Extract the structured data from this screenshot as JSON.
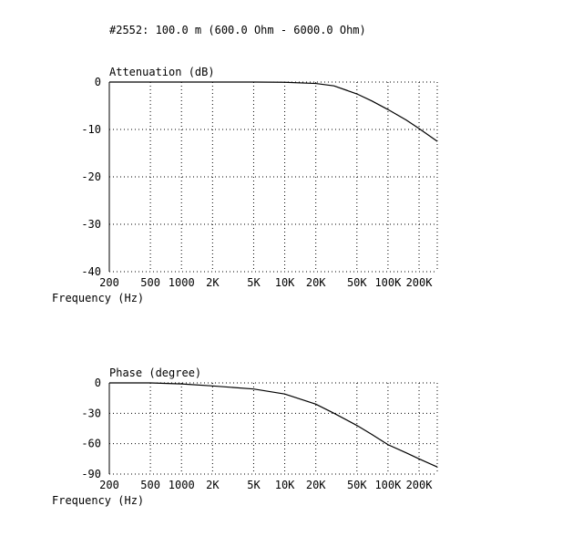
{
  "header": {
    "title": "#2552: 100.0 m (600.0 Ohm - 6000.0 Ohm)"
  },
  "chart_data": [
    {
      "type": "line",
      "title": "Attenuation (dB)",
      "xlabel": "Frequency (Hz)",
      "ylabel": "Attenuation (dB)",
      "x_scale": "log",
      "xlim": [
        200,
        300000
      ],
      "ylim": [
        -40,
        0
      ],
      "grid": true,
      "x_ticks": [
        200,
        500,
        1000,
        2000,
        5000,
        10000,
        20000,
        50000,
        100000,
        200000
      ],
      "x_tick_labels": [
        "200",
        "500",
        "1000",
        "2K",
        "5K",
        "10K",
        "20K",
        "50K",
        "100K",
        "200K"
      ],
      "y_ticks": [
        0,
        -10,
        -20,
        -30,
        -40
      ],
      "y_tick_labels": [
        "0",
        "-10",
        "-20",
        "-30",
        "-40"
      ],
      "series": [
        {
          "x": [
            200,
            1000,
            5000,
            10000,
            20000,
            30000,
            50000,
            70000,
            100000,
            150000,
            200000,
            300000
          ],
          "y": [
            0,
            0,
            0,
            -0.05,
            -0.3,
            -0.8,
            -2.5,
            -4.0,
            -5.8,
            -8.0,
            -9.8,
            -12.5
          ]
        }
      ]
    },
    {
      "type": "line",
      "title": "Phase (degree)",
      "xlabel": "Frequency (Hz)",
      "ylabel": "Phase (degree)",
      "x_scale": "log",
      "xlim": [
        200,
        300000
      ],
      "ylim": [
        -90,
        0
      ],
      "grid": true,
      "x_ticks": [
        200,
        500,
        1000,
        2000,
        5000,
        10000,
        20000,
        50000,
        100000,
        200000
      ],
      "x_tick_labels": [
        "200",
        "500",
        "1000",
        "2K",
        "5K",
        "10K",
        "20K",
        "50K",
        "100K",
        "200K"
      ],
      "y_ticks": [
        0,
        -30,
        -60,
        -90
      ],
      "y_tick_labels": [
        "0",
        "-30",
        "-60",
        "-90"
      ],
      "series": [
        {
          "x": [
            200,
            500,
            1000,
            2000,
            5000,
            10000,
            20000,
            30000,
            50000,
            70000,
            100000,
            150000,
            200000,
            300000
          ],
          "y": [
            0,
            0,
            -1,
            -3,
            -6,
            -11,
            -21,
            -30,
            -42,
            -51,
            -61,
            -69,
            -75,
            -83
          ]
        }
      ]
    }
  ]
}
